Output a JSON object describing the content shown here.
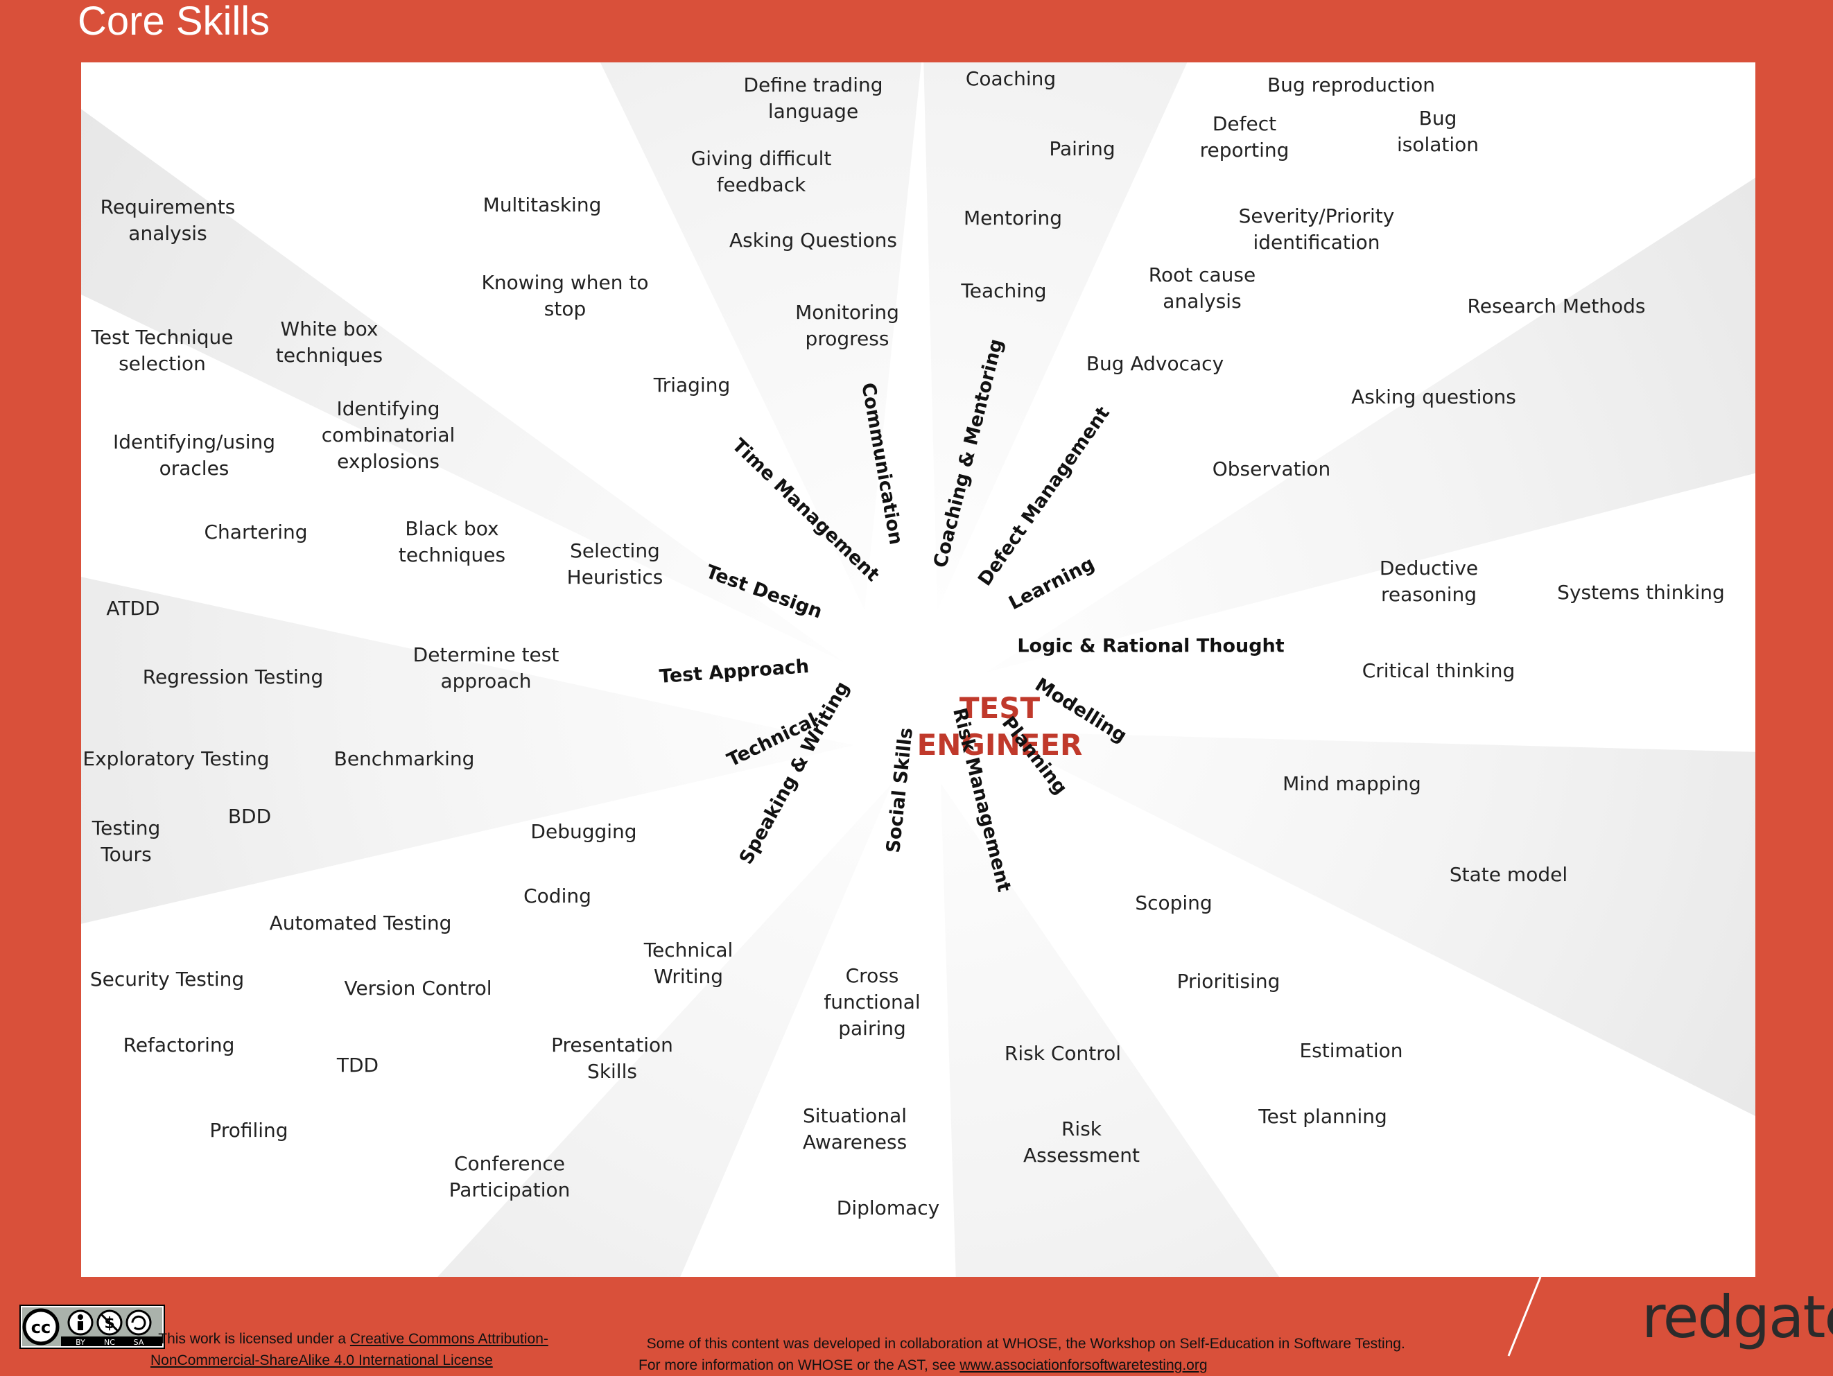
{
  "title": "Core Skills",
  "center": {
    "line1": "TEST",
    "line2": "ENGINEER"
  },
  "categories": [
    {
      "key": "time",
      "label": "Time Management"
    },
    {
      "key": "comm",
      "label": "Communication"
    },
    {
      "key": "coach",
      "label": "Coaching & Mentoring"
    },
    {
      "key": "defect",
      "label": "Defect Management"
    },
    {
      "key": "learning",
      "label": "Learning"
    },
    {
      "key": "logic",
      "label": "Logic & Rational Thought"
    },
    {
      "key": "modelling",
      "label": "Modelling"
    },
    {
      "key": "planning",
      "label": "Planning"
    },
    {
      "key": "risk",
      "label": "Risk Management"
    },
    {
      "key": "social",
      "label": "Social Skills"
    },
    {
      "key": "speaking",
      "label": "Speaking & Writing"
    },
    {
      "key": "technical",
      "label": "Technical"
    },
    {
      "key": "approach",
      "label": "Test Approach"
    },
    {
      "key": "design",
      "label": "Test Design"
    }
  ],
  "skills": [
    {
      "text": "Define trading\nlanguage"
    },
    {
      "text": "Giving difficult\nfeedback"
    },
    {
      "text": "Asking Questions"
    },
    {
      "text": "Monitoring\nprogress"
    },
    {
      "text": "Triaging"
    },
    {
      "text": "Multitasking"
    },
    {
      "text": "Knowing when to\nstop"
    },
    {
      "text": "Coaching"
    },
    {
      "text": "Pairing"
    },
    {
      "text": "Mentoring"
    },
    {
      "text": "Teaching"
    },
    {
      "text": "Bug reproduction"
    },
    {
      "text": "Defect\nreporting"
    },
    {
      "text": "Bug\nisolation"
    },
    {
      "text": "Severity/Priority\nidentification"
    },
    {
      "text": "Root cause\nanalysis"
    },
    {
      "text": "Bug Advocacy"
    },
    {
      "text": "Research Methods"
    },
    {
      "text": "Asking questions"
    },
    {
      "text": "Observation"
    },
    {
      "text": "Deductive\nreasoning"
    },
    {
      "text": "Systems thinking"
    },
    {
      "text": "Critical thinking"
    },
    {
      "text": "Mind mapping"
    },
    {
      "text": "State model"
    },
    {
      "text": "Scoping"
    },
    {
      "text": "Prioritising"
    },
    {
      "text": "Estimation"
    },
    {
      "text": "Test planning"
    },
    {
      "text": "Risk Control"
    },
    {
      "text": "Risk\nAssessment"
    },
    {
      "text": "Cross\nfunctional\npairing"
    },
    {
      "text": "Situational\nAwareness"
    },
    {
      "text": "Diplomacy"
    },
    {
      "text": "Technical\nWriting"
    },
    {
      "text": "Presentation\nSkills"
    },
    {
      "text": "Conference\nParticipation"
    },
    {
      "text": "Debugging"
    },
    {
      "text": "Coding"
    },
    {
      "text": "Automated Testing"
    },
    {
      "text": "Version Control"
    },
    {
      "text": "Security Testing"
    },
    {
      "text": "Refactoring"
    },
    {
      "text": "TDD"
    },
    {
      "text": "Profiling"
    },
    {
      "text": "ATDD"
    },
    {
      "text": "Regression Testing"
    },
    {
      "text": "Determine test\napproach"
    },
    {
      "text": "Exploratory Testing"
    },
    {
      "text": "Benchmarking"
    },
    {
      "text": "BDD"
    },
    {
      "text": "Testing\nTours"
    },
    {
      "text": "Requirements\nanalysis"
    },
    {
      "text": "Test Technique\nselection"
    },
    {
      "text": "White box\ntechniques"
    },
    {
      "text": "Identifying\ncombinatorial\nexplosions"
    },
    {
      "text": "Identifying/using\noracles"
    },
    {
      "text": "Chartering"
    },
    {
      "text": "Black box\ntechniques"
    },
    {
      "text": "Selecting\nHeuristics"
    }
  ],
  "footer": {
    "license_prefix": "This work is licensed under a ",
    "license_link_1": "Creative Commons Attribution-",
    "license_link_2": "NonCommercial-ShareAlike 4.0 International License",
    "note_line_1": "Some of this content was developed in collaboration at WHOSE, the Workshop on Self-Education in Software Testing.",
    "note_line_2_prefix": "For more information on WHOSE or the AST, see ",
    "note_link": "www.associationforsoftwaretesting.org",
    "badge_labels": [
      "BY",
      "NC",
      "SA"
    ],
    "brand": "redgate"
  },
  "colors": {
    "frame": "#d9503a",
    "panel": "#ffffff",
    "sector": "#eeeeee",
    "center_text": "#c0392b"
  }
}
